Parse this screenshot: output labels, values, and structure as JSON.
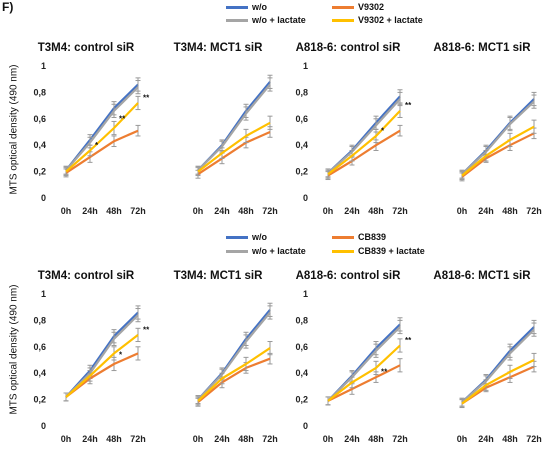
{
  "panel_label": "F)",
  "colors": {
    "wo": "#4472C4",
    "wo_lactate": "#A5A5A5",
    "drug": "#ED7D31",
    "drug_lactate": "#FFC000",
    "error_bar": "#999999"
  },
  "ylabel": "MTS optical density (490 nm)",
  "legends": [
    {
      "items": [
        "w/o",
        "w/o + lactate",
        "V9302",
        "V9302 + lactate"
      ]
    },
    {
      "items": [
        "w/o",
        "w/o + lactate",
        "CB839",
        "CB839 + lactate"
      ]
    }
  ],
  "chart_data": [
    {
      "type": "line",
      "title": "T3M4: control siR",
      "categories": [
        "0h",
        "24h",
        "48h",
        "72h"
      ],
      "ylim": [
        0,
        1
      ],
      "yticks": [
        "0",
        "0,2",
        "0,4",
        "0,6",
        "0,8",
        "1"
      ],
      "series": [
        {
          "name": "w/o",
          "values": [
            0.21,
            0.44,
            0.68,
            0.86
          ],
          "errors": [
            0.03,
            0.04,
            0.05,
            0.05
          ]
        },
        {
          "name": "w/o + lactate",
          "values": [
            0.21,
            0.42,
            0.66,
            0.84
          ],
          "errors": [
            0.03,
            0.04,
            0.05,
            0.05
          ]
        },
        {
          "name": "V9302",
          "values": [
            0.19,
            0.31,
            0.43,
            0.51
          ],
          "errors": [
            0.03,
            0.04,
            0.04,
            0.04
          ]
        },
        {
          "name": "V9302 + lactate",
          "values": [
            0.2,
            0.36,
            0.53,
            0.72
          ],
          "errors": [
            0.03,
            0.04,
            0.05,
            0.05
          ]
        }
      ],
      "annotations": [
        {
          "text": "*",
          "x": "24h",
          "y": 0.38
        },
        {
          "text": "**",
          "x": "48h",
          "y": 0.58
        },
        {
          "text": "**",
          "x": "72h",
          "y": 0.74
        }
      ]
    },
    {
      "type": "line",
      "title": "T3M4: MCT1 siR",
      "categories": [
        "0h",
        "24h",
        "48h",
        "72h"
      ],
      "ylim": [
        0,
        1
      ],
      "yticks": [],
      "series": [
        {
          "name": "w/o",
          "values": [
            0.21,
            0.4,
            0.66,
            0.88
          ],
          "errors": [
            0.03,
            0.04,
            0.05,
            0.05
          ]
        },
        {
          "name": "w/o + lactate",
          "values": [
            0.21,
            0.39,
            0.64,
            0.86
          ],
          "errors": [
            0.03,
            0.04,
            0.05,
            0.05
          ]
        },
        {
          "name": "V9302",
          "values": [
            0.18,
            0.3,
            0.42,
            0.5
          ],
          "errors": [
            0.03,
            0.04,
            0.04,
            0.04
          ]
        },
        {
          "name": "V9302 + lactate",
          "values": [
            0.2,
            0.34,
            0.47,
            0.57
          ],
          "errors": [
            0.03,
            0.04,
            0.05,
            0.05
          ]
        }
      ],
      "annotations": []
    },
    {
      "type": "line",
      "title": "A818-6: control siR",
      "categories": [
        "0h",
        "24h",
        "48h",
        "72h"
      ],
      "ylim": [
        0,
        1
      ],
      "yticks": [
        "0",
        "0,2",
        "0,4",
        "0,6",
        "0,8",
        "1"
      ],
      "series": [
        {
          "name": "w/o",
          "values": [
            0.19,
            0.36,
            0.57,
            0.77
          ],
          "errors": [
            0.03,
            0.04,
            0.05,
            0.05
          ]
        },
        {
          "name": "w/o + lactate",
          "values": [
            0.19,
            0.35,
            0.55,
            0.75
          ],
          "errors": [
            0.03,
            0.04,
            0.05,
            0.05
          ]
        },
        {
          "name": "V9302",
          "values": [
            0.17,
            0.28,
            0.4,
            0.51
          ],
          "errors": [
            0.03,
            0.03,
            0.04,
            0.04
          ]
        },
        {
          "name": "V9302 + lactate",
          "values": [
            0.18,
            0.32,
            0.47,
            0.66
          ],
          "errors": [
            0.03,
            0.04,
            0.05,
            0.05
          ]
        }
      ],
      "annotations": [
        {
          "text": "*",
          "x": "48h",
          "y": 0.49
        },
        {
          "text": "**",
          "x": "72h",
          "y": 0.68
        }
      ]
    },
    {
      "type": "line",
      "title": "A818-6: MCT1 siR",
      "categories": [
        "0h",
        "24h",
        "48h",
        "72h"
      ],
      "ylim": [
        0,
        1
      ],
      "yticks": [],
      "series": [
        {
          "name": "w/o",
          "values": [
            0.18,
            0.36,
            0.57,
            0.75
          ],
          "errors": [
            0.03,
            0.04,
            0.05,
            0.05
          ]
        },
        {
          "name": "w/o + lactate",
          "values": [
            0.18,
            0.35,
            0.56,
            0.73
          ],
          "errors": [
            0.03,
            0.04,
            0.05,
            0.05
          ]
        },
        {
          "name": "V9302",
          "values": [
            0.16,
            0.3,
            0.4,
            0.49
          ],
          "errors": [
            0.03,
            0.03,
            0.04,
            0.04
          ]
        },
        {
          "name": "V9302 + lactate",
          "values": [
            0.17,
            0.32,
            0.44,
            0.54
          ],
          "errors": [
            0.03,
            0.04,
            0.05,
            0.05
          ]
        }
      ],
      "annotations": []
    },
    {
      "type": "line",
      "title": "T3M4: control siR",
      "categories": [
        "0h",
        "24h",
        "48h",
        "72h"
      ],
      "ylim": [
        0,
        1
      ],
      "yticks": [
        "0",
        "0,2",
        "0,4",
        "0,6",
        "0,8",
        "1"
      ],
      "series": [
        {
          "name": "w/o",
          "values": [
            0.22,
            0.42,
            0.68,
            0.86
          ],
          "errors": [
            0.03,
            0.04,
            0.05,
            0.05
          ]
        },
        {
          "name": "w/o + lactate",
          "values": [
            0.22,
            0.4,
            0.66,
            0.84
          ],
          "errors": [
            0.03,
            0.04,
            0.05,
            0.05
          ]
        },
        {
          "name": "CB839",
          "values": [
            0.22,
            0.36,
            0.47,
            0.55
          ],
          "errors": [
            0.03,
            0.04,
            0.05,
            0.05
          ]
        },
        {
          "name": "CB839 + lactate",
          "values": [
            0.22,
            0.38,
            0.55,
            0.69
          ],
          "errors": [
            0.03,
            0.04,
            0.05,
            0.05
          ]
        }
      ],
      "annotations": [
        {
          "text": "*",
          "x": "48h",
          "y": 0.52
        },
        {
          "text": "**",
          "x": "72h",
          "y": 0.71
        }
      ]
    },
    {
      "type": "line",
      "title": "T3M4: MCT1 siR",
      "categories": [
        "0h",
        "24h",
        "48h",
        "72h"
      ],
      "ylim": [
        0,
        1
      ],
      "yticks": [],
      "series": [
        {
          "name": "w/o",
          "values": [
            0.2,
            0.4,
            0.66,
            0.88
          ],
          "errors": [
            0.03,
            0.04,
            0.05,
            0.05
          ]
        },
        {
          "name": "w/o + lactate",
          "values": [
            0.2,
            0.39,
            0.64,
            0.86
          ],
          "errors": [
            0.03,
            0.04,
            0.05,
            0.05
          ]
        },
        {
          "name": "CB839",
          "values": [
            0.18,
            0.33,
            0.44,
            0.51
          ],
          "errors": [
            0.03,
            0.04,
            0.04,
            0.04
          ]
        },
        {
          "name": "CB839 + lactate",
          "values": [
            0.19,
            0.36,
            0.47,
            0.59
          ],
          "errors": [
            0.03,
            0.04,
            0.05,
            0.05
          ]
        }
      ],
      "annotations": []
    },
    {
      "type": "line",
      "title": "A818-6: control siR",
      "categories": [
        "0h",
        "24h",
        "48h",
        "72h"
      ],
      "ylim": [
        0,
        1
      ],
      "yticks": [
        "0",
        "0,2",
        "0,4",
        "0,6",
        "0,8",
        "1"
      ],
      "series": [
        {
          "name": "w/o",
          "values": [
            0.19,
            0.38,
            0.59,
            0.77
          ],
          "errors": [
            0.03,
            0.04,
            0.05,
            0.05
          ]
        },
        {
          "name": "w/o + lactate",
          "values": [
            0.19,
            0.37,
            0.57,
            0.75
          ],
          "errors": [
            0.03,
            0.04,
            0.05,
            0.05
          ]
        },
        {
          "name": "CB839",
          "values": [
            0.19,
            0.28,
            0.37,
            0.46
          ],
          "errors": [
            0.03,
            0.04,
            0.04,
            0.05
          ]
        },
        {
          "name": "CB839 + lactate",
          "values": [
            0.19,
            0.33,
            0.44,
            0.61
          ],
          "errors": [
            0.03,
            0.04,
            0.05,
            0.05
          ]
        }
      ],
      "annotations": [
        {
          "text": "**",
          "x": "48h",
          "y": 0.39
        },
        {
          "text": "**",
          "x": "72h",
          "y": 0.63
        }
      ]
    },
    {
      "type": "line",
      "title": "A818-6: MCT1 siR",
      "categories": [
        "0h",
        "24h",
        "48h",
        "72h"
      ],
      "ylim": [
        0,
        1
      ],
      "yticks": [],
      "series": [
        {
          "name": "w/o",
          "values": [
            0.18,
            0.35,
            0.57,
            0.75
          ],
          "errors": [
            0.03,
            0.04,
            0.05,
            0.05
          ]
        },
        {
          "name": "w/o + lactate",
          "values": [
            0.18,
            0.34,
            0.55,
            0.73
          ],
          "errors": [
            0.03,
            0.04,
            0.05,
            0.05
          ]
        },
        {
          "name": "CB839",
          "values": [
            0.17,
            0.29,
            0.37,
            0.45
          ],
          "errors": [
            0.03,
            0.03,
            0.04,
            0.04
          ]
        },
        {
          "name": "CB839 + lactate",
          "values": [
            0.17,
            0.31,
            0.41,
            0.5
          ],
          "errors": [
            0.03,
            0.04,
            0.05,
            0.05
          ]
        }
      ],
      "annotations": []
    }
  ]
}
